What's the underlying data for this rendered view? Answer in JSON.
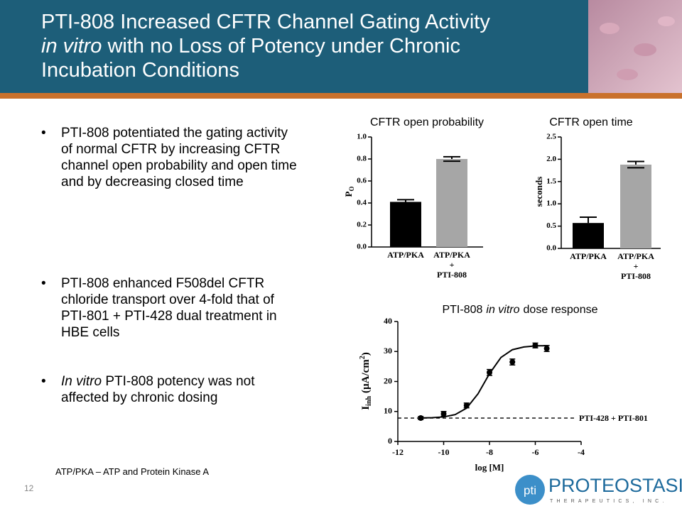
{
  "slide": {
    "title": [
      "PTI-808 Increased CFTR Channel Gating Activity",
      "in vitro",
      "with no Loss of Potency under Chronic",
      "Incubation Conditions"
    ],
    "bullets": [
      {
        "text": "PTI-808 potentiated the gating activity of normal CFTR by increasing CFTR channel open probability and open time and by decreasing closed time"
      },
      {
        "text": "PTI-808 enhanced F508del CFTR chloride transport over 4-fold that of PTI-801 + PTI-428 dual treatment in HBE cells"
      },
      {
        "italic": "In vitro",
        "text": "PTI-808 potency was not affected by chronic dosing"
      }
    ],
    "footnote": "ATP/PKA – ATP and Protein Kinase A",
    "page_number": "12",
    "logo": {
      "mark": "pti",
      "name": "PROTEOSTASIS",
      "tagline": "THERAPEUTICS, INC."
    }
  },
  "chart_data": [
    {
      "type": "bar",
      "title": "CFTR open probability",
      "ylabel": "P",
      "ylabel_subscript": "O",
      "categories": [
        "ATP/PKA",
        "ATP/PKA\n+\nPTI-808"
      ],
      "values": [
        0.41,
        0.8
      ],
      "errors": [
        0.02,
        0.02
      ],
      "colors": [
        "#000000",
        "#a6a6a6"
      ],
      "ylim": [
        0,
        1
      ],
      "yticks": [
        {
          "value": 0,
          "label": "0.0"
        },
        0.2,
        0.4,
        0.6,
        0.8,
        {
          "value": 1,
          "label": "1.0"
        }
      ]
    },
    {
      "type": "bar",
      "title": "CFTR open time",
      "ylabel": "seconds",
      "categories": [
        "ATP/PKA",
        "ATP/PKA\n+\nPTI-808"
      ],
      "values": [
        0.57,
        1.88
      ],
      "errors": [
        0.13,
        0.07
      ],
      "colors": [
        "#000000",
        "#a6a6a6"
      ],
      "ylim": [
        0,
        2.5
      ],
      "yticks": [
        {
          "value": 0,
          "label": "0.0"
        },
        0.5,
        {
          "value": 1,
          "label": "1.0"
        },
        1.5,
        {
          "value": 2,
          "label": "2.0"
        },
        2.5
      ]
    },
    {
      "type": "scatter",
      "title": "PTI-808",
      "title_italic": "in vitro",
      "title_rest": "dose response",
      "ylabel": "I",
      "ylabel_subscript": "inh",
      "ylabel_rest": "(µA/cm",
      "ylabel_superscript": "2",
      "ylabel_end": ")",
      "xlabel": "log [M]",
      "x": [
        -11,
        -10,
        -9,
        -8,
        -7,
        -6,
        -5.5
      ],
      "y": [
        7.8,
        9.2,
        12,
        23,
        26.5,
        32,
        31
      ],
      "errors": [
        0.5,
        0.8,
        0.8,
        1,
        1,
        0.8,
        1
      ],
      "color": "#000000",
      "fit_curve": {
        "x": [
          -11,
          -10.5,
          -10,
          -9.5,
          -9,
          -8.5,
          -8,
          -7.5,
          -7,
          -6.5,
          -6,
          -5.5
        ],
        "y": [
          7.84,
          7.92,
          8.18,
          8.95,
          11.1,
          15.9,
          22.6,
          28.0,
          30.6,
          31.5,
          31.85,
          31.95
        ]
      },
      "reference": {
        "value": 7.8,
        "label": "PTI-428 + PTI-801"
      },
      "xlim": [
        -12,
        -4
      ],
      "xticks": [
        -12,
        -10,
        -8,
        -6,
        -4
      ],
      "ylim": [
        0,
        40
      ],
      "yticks": [
        0,
        10,
        20,
        30,
        40
      ]
    }
  ]
}
